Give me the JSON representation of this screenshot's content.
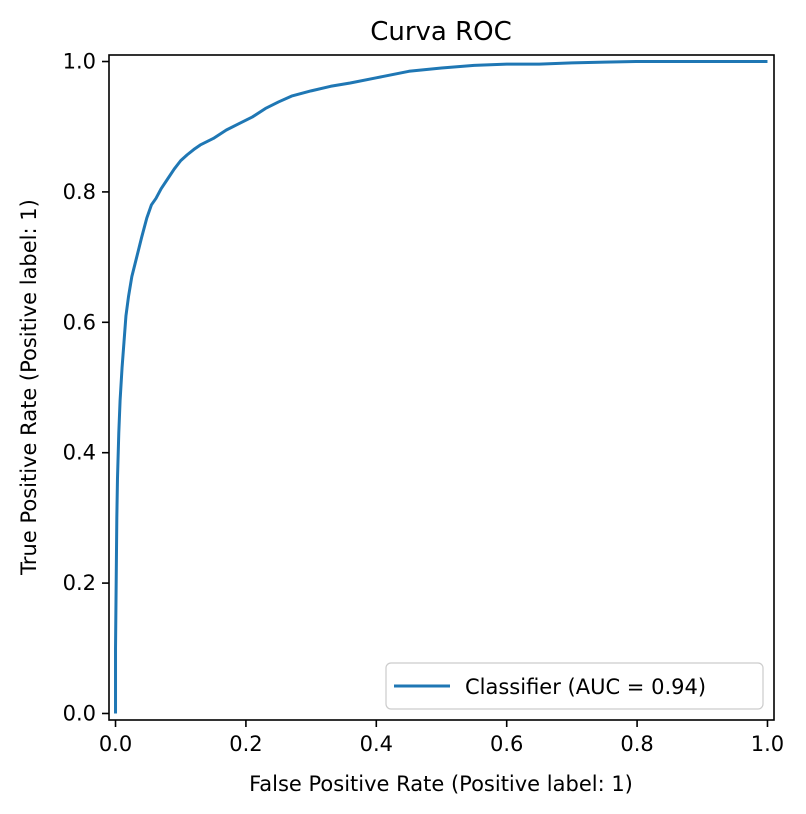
{
  "chart_data": {
    "type": "line",
    "title": "Curva ROC",
    "xlabel": "False Positive Rate (Positive label: 1)",
    "ylabel": "True Positive Rate (Positive label: 1)",
    "xlim": [
      -0.01,
      1.01
    ],
    "ylim": [
      -0.01,
      1.01
    ],
    "grid": false,
    "legend_position": "lower-right",
    "xticks": [
      "0.0",
      "0.2",
      "0.4",
      "0.6",
      "0.8",
      "1.0"
    ],
    "yticks": [
      "0.0",
      "0.2",
      "0.4",
      "0.6",
      "0.8",
      "1.0"
    ],
    "series": [
      {
        "name": "Classifier (AUC = 0.94)",
        "color": "#1f77b4",
        "x": [
          0.0,
          0.0,
          0.001,
          0.002,
          0.003,
          0.005,
          0.007,
          0.01,
          0.013,
          0.016,
          0.02,
          0.025,
          0.03,
          0.035,
          0.04,
          0.048,
          0.055,
          0.062,
          0.07,
          0.08,
          0.09,
          0.1,
          0.11,
          0.12,
          0.13,
          0.15,
          0.17,
          0.19,
          0.21,
          0.23,
          0.25,
          0.27,
          0.3,
          0.33,
          0.36,
          0.4,
          0.45,
          0.5,
          0.55,
          0.6,
          0.65,
          0.7,
          0.75,
          0.8,
          0.85,
          0.9,
          0.95,
          1.0
        ],
        "y": [
          0.0,
          0.1,
          0.2,
          0.3,
          0.36,
          0.43,
          0.48,
          0.53,
          0.57,
          0.61,
          0.64,
          0.67,
          0.69,
          0.71,
          0.73,
          0.76,
          0.78,
          0.79,
          0.805,
          0.82,
          0.835,
          0.848,
          0.857,
          0.865,
          0.872,
          0.882,
          0.895,
          0.905,
          0.915,
          0.928,
          0.938,
          0.947,
          0.955,
          0.962,
          0.967,
          0.975,
          0.985,
          0.99,
          0.994,
          0.996,
          0.996,
          0.998,
          0.999,
          1.0,
          1.0,
          1.0,
          1.0,
          1.0
        ]
      }
    ]
  }
}
